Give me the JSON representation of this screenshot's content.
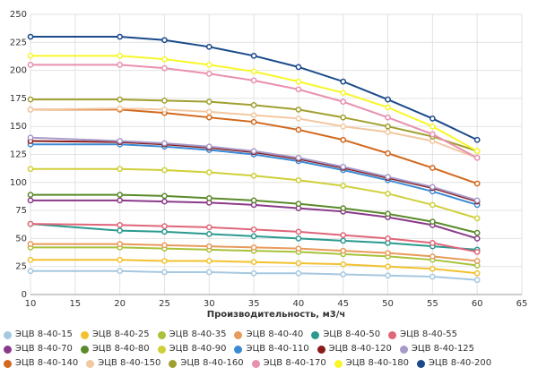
{
  "chart_data": {
    "type": "line",
    "xlabel": "Производительность, м3/ч",
    "x": [
      10,
      20,
      25,
      30,
      35,
      40,
      45,
      50,
      55,
      60
    ],
    "xlim": [
      10,
      65
    ],
    "xticks": [
      10,
      15,
      20,
      25,
      30,
      35,
      40,
      45,
      50,
      55,
      60,
      65
    ],
    "ylim": [
      0,
      250
    ],
    "yticks": [
      0,
      25,
      50,
      75,
      100,
      125,
      150,
      175,
      200,
      225,
      250
    ],
    "grid": true,
    "series": [
      {
        "name": "ЭЦВ 8-40-15",
        "color": "#a6c8e0",
        "values": [
          21,
          21,
          20,
          20,
          19,
          19,
          18,
          17,
          16,
          13
        ]
      },
      {
        "name": "ЭЦВ 8-40-25",
        "color": "#f2c12e",
        "values": [
          31,
          31,
          30,
          30,
          29,
          28,
          27,
          25,
          23,
          19
        ]
      },
      {
        "name": "ЭЦВ 8-40-35",
        "color": "#a8c23a",
        "values": [
          42,
          42,
          41,
          40,
          39,
          38,
          36,
          34,
          31,
          26
        ]
      },
      {
        "name": "ЭЦВ 8-40-40",
        "color": "#e89a5a",
        "values": [
          45,
          45,
          44,
          43,
          42,
          41,
          39,
          37,
          34,
          30
        ]
      },
      {
        "name": "ЭЦВ 8-40-50",
        "color": "#2a9a8e",
        "values": [
          63,
          57,
          56,
          54,
          52,
          50,
          48,
          46,
          43,
          40
        ]
      },
      {
        "name": "ЭЦВ 8-40-55",
        "color": "#e0667a",
        "values": [
          63,
          62,
          61,
          60,
          58,
          56,
          53,
          50,
          46,
          38
        ]
      },
      {
        "name": "ЭЦВ 8-40-70",
        "color": "#8b3a8a",
        "values": [
          84,
          84,
          83,
          82,
          80,
          77,
          74,
          69,
          62,
          50
        ]
      },
      {
        "name": "ЭЦВ 8-40-80",
        "color": "#5a8a2a",
        "values": [
          89,
          89,
          88,
          86,
          84,
          81,
          77,
          72,
          65,
          55
        ]
      },
      {
        "name": "ЭЦВ 8-40-90",
        "color": "#cfcf3a",
        "values": [
          112,
          112,
          111,
          109,
          106,
          102,
          97,
          90,
          80,
          68
        ]
      },
      {
        "name": "ЭЦВ 8-40-110",
        "color": "#3a8ad4",
        "values": [
          134,
          134,
          132,
          129,
          125,
          119,
          111,
          102,
          92,
          80
        ]
      },
      {
        "name": "ЭЦВ 8-40-120",
        "color": "#8b1a1a",
        "values": [
          137,
          136,
          134,
          131,
          127,
          121,
          113,
          104,
          95,
          83
        ]
      },
      {
        "name": "ЭЦВ 8-40-125",
        "color": "#a89ac8",
        "values": [
          140,
          137,
          135,
          132,
          128,
          122,
          114,
          105,
          96,
          84
        ]
      },
      {
        "name": "ЭЦВ 8-40-140",
        "color": "#d2691e",
        "values": [
          165,
          165,
          162,
          158,
          154,
          147,
          138,
          126,
          113,
          99
        ]
      },
      {
        "name": "ЭЦВ 8-40-150",
        "color": "#f2c8a0",
        "values": [
          165,
          166,
          165,
          163,
          160,
          157,
          150,
          145,
          137,
          122
        ]
      },
      {
        "name": "ЭЦВ 8-40-160",
        "color": "#a0a030",
        "values": [
          174,
          174,
          173,
          172,
          169,
          165,
          158,
          150,
          141,
          128
        ]
      },
      {
        "name": "ЭЦВ 8-40-170",
        "color": "#e890b0",
        "values": [
          205,
          205,
          202,
          197,
          191,
          183,
          172,
          158,
          143,
          122
        ]
      },
      {
        "name": "ЭЦВ 8-40-180",
        "color": "#f7f72a",
        "values": [
          213,
          213,
          210,
          205,
          199,
          190,
          180,
          167,
          150,
          128
        ]
      },
      {
        "name": "ЭЦВ 8-40-200",
        "color": "#1a4a8a",
        "values": [
          230,
          230,
          227,
          221,
          213,
          203,
          190,
          174,
          157,
          138
        ]
      }
    ]
  }
}
